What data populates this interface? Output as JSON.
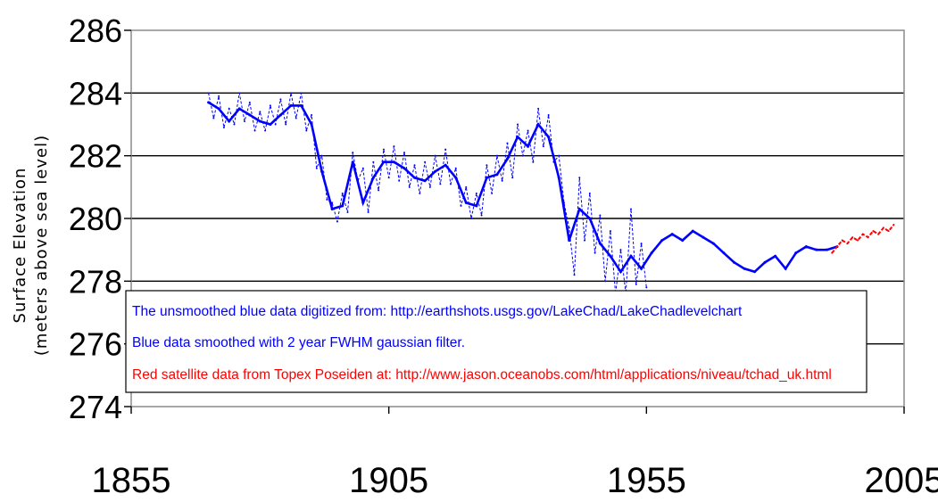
{
  "chart_data": {
    "type": "line",
    "title": "",
    "ylabel_line1": "Surface Elevation",
    "ylabel_line2": "(meters above sea level)",
    "xlabel": "",
    "xlim": [
      1855,
      2005
    ],
    "ylim": [
      274,
      286
    ],
    "x_ticks": [
      "1855",
      "1905",
      "1955",
      "2005"
    ],
    "y_ticks": [
      "286",
      "284",
      "282",
      "280",
      "278",
      "276",
      "274"
    ],
    "grid": "horizontal",
    "annotations": [
      "The unsmoothed blue data digitized from: http://earthshots.usgs.gov/LakeChad/LakeChadlevelchart",
      "Blue data smoothed with 2 year FWHM gaussian filter.",
      "Red satellite data from Topex Poseiden at: http://www.jason.oceanobs.com/html/applications/niveau/tchad_uk.html"
    ],
    "annotation_colors": [
      "#0000ff",
      "#0000ff",
      "#ff0000"
    ],
    "series": [
      {
        "color": "#0000ff",
        "style": "smoothed",
        "x": [
          1870,
          1872,
          1874,
          1876,
          1878,
          1880,
          1882,
          1884,
          1886,
          1888,
          1890,
          1892,
          1894,
          1896,
          1898,
          1900,
          1902,
          1904,
          1906,
          1908,
          1910,
          1912,
          1914,
          1916,
          1918,
          1920,
          1922,
          1924,
          1926,
          1928,
          1930,
          1932,
          1934,
          1936,
          1938,
          1940,
          1942,
          1944,
          1946,
          1948,
          1950,
          1952,
          1954,
          1956,
          1958,
          1960,
          1962,
          1964,
          1966,
          1968,
          1970,
          1972,
          1974,
          1976,
          1978,
          1980,
          1982,
          1984,
          1986,
          1988,
          1990,
          1992
        ],
        "y": [
          283.7,
          283.5,
          283.1,
          283.5,
          283.3,
          283.1,
          283.0,
          283.3,
          283.6,
          283.6,
          283.0,
          281.5,
          280.3,
          280.4,
          281.8,
          280.5,
          281.3,
          281.8,
          281.8,
          281.6,
          281.3,
          281.2,
          281.5,
          281.7,
          281.3,
          280.5,
          280.4,
          281.3,
          281.4,
          281.9,
          282.6,
          282.3,
          283.0,
          282.6,
          281.3,
          279.3,
          280.3,
          280.0,
          279.2,
          278.8,
          278.3,
          278.8,
          278.4,
          278.9,
          279.3,
          279.5,
          279.3,
          279.6,
          279.4,
          279.2,
          278.9,
          278.6,
          278.4,
          278.3,
          278.6,
          278.8,
          278.4,
          278.9,
          279.1,
          279.0,
          279.0,
          279.1
        ]
      },
      {
        "color": "#0000ff",
        "style": "unsmoothed-dashed",
        "x": [
          1870,
          1871,
          1872,
          1873,
          1874,
          1875,
          1876,
          1877,
          1878,
          1879,
          1880,
          1881,
          1882,
          1883,
          1884,
          1885,
          1886,
          1887,
          1888,
          1889,
          1890,
          1891,
          1892,
          1893,
          1894,
          1895,
          1896,
          1897,
          1898,
          1899,
          1900,
          1901,
          1902,
          1903,
          1904,
          1905,
          1906,
          1907,
          1908,
          1909,
          1910,
          1911,
          1912,
          1913,
          1914,
          1915,
          1916,
          1917,
          1918,
          1919,
          1920,
          1921,
          1922,
          1923,
          1924,
          1925,
          1926,
          1927,
          1928,
          1929,
          1930,
          1931,
          1932,
          1933,
          1934,
          1935,
          1936,
          1937,
          1938,
          1939,
          1940,
          1941,
          1942,
          1943,
          1944,
          1945,
          1946,
          1947,
          1948,
          1949,
          1950,
          1951,
          1952,
          1953,
          1954,
          1955
        ],
        "y": [
          284.0,
          283.2,
          283.9,
          282.9,
          283.5,
          283.0,
          284.0,
          283.1,
          283.7,
          282.8,
          283.4,
          282.8,
          283.6,
          283.0,
          283.8,
          283.0,
          284.0,
          283.2,
          284.0,
          282.8,
          283.3,
          281.6,
          282.0,
          280.6,
          280.5,
          279.9,
          280.8,
          280.2,
          282.1,
          281.2,
          281.6,
          280.2,
          281.8,
          280.9,
          282.2,
          281.3,
          282.3,
          281.2,
          282.1,
          281.0,
          281.7,
          280.8,
          281.8,
          281.0,
          282.0,
          281.1,
          282.2,
          281.1,
          281.6,
          280.4,
          281.0,
          280.0,
          280.8,
          280.1,
          281.7,
          280.8,
          282.0,
          281.2,
          282.4,
          281.3,
          283.0,
          282.0,
          282.8,
          281.8,
          283.5,
          282.3,
          283.3,
          281.8,
          282.0,
          280.5,
          279.7,
          278.2,
          281.3,
          279.3,
          280.8,
          278.9,
          280.1,
          278.0,
          279.6,
          277.6,
          279.0,
          277.6,
          280.3,
          277.9,
          279.2,
          277.8
        ]
      },
      {
        "color": "#ff0000",
        "style": "satellite",
        "x": [
          1991,
          1992,
          1993,
          1994,
          1995,
          1996,
          1997,
          1998,
          1999,
          2000,
          2001,
          2002,
          2003
        ],
        "y": [
          278.9,
          279.1,
          279.3,
          279.2,
          279.4,
          279.3,
          279.5,
          279.4,
          279.6,
          279.5,
          279.7,
          279.6,
          279.8
        ]
      }
    ]
  }
}
